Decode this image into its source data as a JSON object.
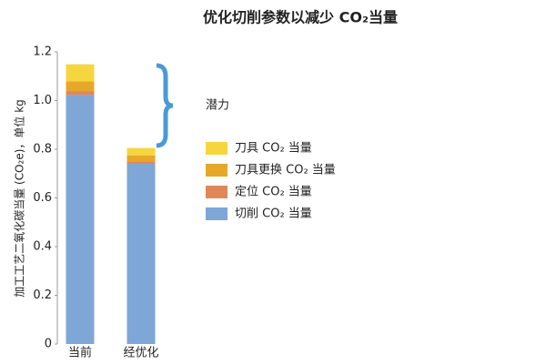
{
  "chart_data": {
    "type": "stacked_bar",
    "title": "优化切削参数以减少 CO₂当量",
    "y_label": "加工工艺二氧化碳当量 (CO₂e)，单位 kg",
    "annotation": "潜力",
    "categories": [
      "当前",
      "经优化"
    ],
    "series": [
      {
        "name": "切削 CO₂ 当量",
        "color": "#7ea6d6",
        "values": [
          1.024,
          0.74
        ]
      },
      {
        "name": "定位 CO₂ 当量",
        "color": "#e0875a",
        "values": [
          0.015,
          0.01
        ]
      },
      {
        "name": "刀具更换 CO₂ 当量",
        "color": "#e5a82a",
        "values": [
          0.04,
          0.025
        ]
      },
      {
        "name": "刀具 CO₂ 当量",
        "color": "#f5d63f",
        "values": [
          0.07,
          0.03
        ]
      }
    ],
    "ylim": [
      0,
      1.2
    ],
    "yticks": [
      0,
      0.2,
      0.4,
      0.6,
      0.8,
      {
        "value": 1,
        "label": "1.0"
      },
      1.2
    ],
    "grid": false
  }
}
